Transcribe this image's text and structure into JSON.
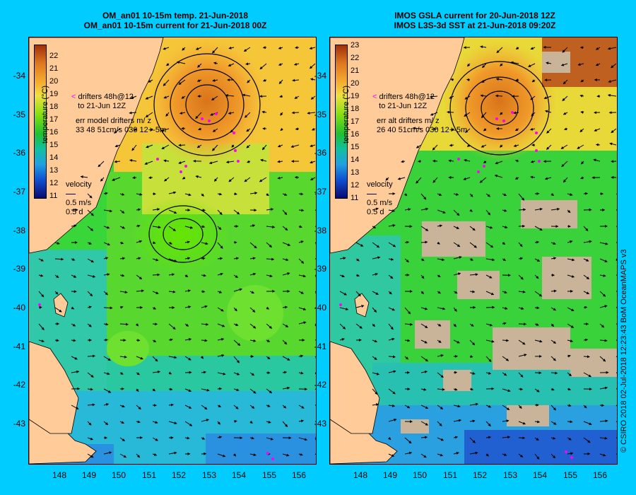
{
  "left_panel": {
    "title_line1": "OM_an01 10-15m temp. 21-Jun-2018",
    "title_line2": "OM_an01 10-15m current for 21-Jun-2018 00Z",
    "colorbar_ticks": [
      "22",
      "21",
      "20",
      "19",
      "18",
      "17",
      "16",
      "15",
      "14",
      "13",
      "12",
      "11"
    ],
    "colorbar_label": "temperature (°C)",
    "drifters_line1": "drifters 48h@12",
    "drifters_line2": "to 21-Jun 12Z",
    "err_line1": "err model drifters m/ z",
    "err_line2": "33 48 51cm/s 030 12+-5m",
    "velocity_label": "velocity",
    "velocity_scale": "0.5 m/s",
    "velocity_time": "0.5 d"
  },
  "right_panel": {
    "title_line1": "IMOS GSLA current for 20-Jun-2018 12Z",
    "title_line2": "IMOS L3S-3d SST at 21-Jun-2018 09:20Z",
    "colorbar_ticks": [
      "23",
      "22",
      "21",
      "20",
      "19",
      "18",
      "17",
      "16",
      "15",
      "14",
      "13",
      "12",
      "11"
    ],
    "colorbar_label": "temperature (°C)",
    "drifters_line1": "drifters 48h@12",
    "drifters_line2": "to 21-Jun 12Z",
    "err_line1": "err alt drifters m/ z",
    "err_line2": "26 40 51cm/s 030 12+-5m",
    "velocity_label": "velocity",
    "velocity_scale": "0.5 m/s",
    "velocity_time": "0.5 d"
  },
  "lat_labels": [
    "-34",
    "-35",
    "-36",
    "-37",
    "-38",
    "-39",
    "-40",
    "-41",
    "-42",
    "-43"
  ],
  "lon_labels": [
    "148",
    "149",
    "150",
    "151",
    "152",
    "153",
    "154",
    "155",
    "156"
  ],
  "credit": "© CSIRO 2018   02-Jul-2018 12:23:43 BoM OceanMAPS v3",
  "colors": {
    "background": "#00ccff",
    "land": "#ffcc99",
    "drifter": "#ff00ff",
    "missing_sst": "#c9b49a"
  }
}
